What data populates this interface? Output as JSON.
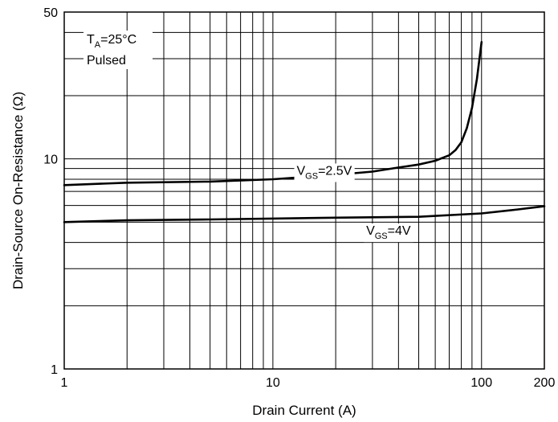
{
  "chart_data": {
    "type": "line",
    "title": "",
    "xlabel": "Drain Current (A)",
    "ylabel": "Drain-Source On-Resistance (Ω)",
    "xscale": "log",
    "yscale": "log",
    "xlim": [
      1,
      200
    ],
    "ylim": [
      1,
      50
    ],
    "grid": true,
    "x_ticks": [
      {
        "value": 1,
        "label": "1"
      },
      {
        "value": 10,
        "label": "10"
      },
      {
        "value": 100,
        "label": "100"
      },
      {
        "value": 200,
        "label": "200"
      }
    ],
    "y_ticks": [
      {
        "value": 1,
        "label": "1"
      },
      {
        "value": 10,
        "label": "10"
      },
      {
        "value": 50,
        "label": "50"
      }
    ],
    "conditions": {
      "ta_prefix": "T",
      "ta_sub": "A",
      "ta_value": "=25°C",
      "mode": "Pulsed"
    },
    "series": [
      {
        "label_prefix": "V",
        "label_sub": "GS",
        "label_value": "=2.5V",
        "label_at": {
          "x": 13,
          "y": 8.4
        },
        "points": [
          [
            1,
            7.5
          ],
          [
            2,
            7.7
          ],
          [
            5,
            7.8
          ],
          [
            10,
            8.0
          ],
          [
            20,
            8.4
          ],
          [
            30,
            8.7
          ],
          [
            40,
            9.1
          ],
          [
            50,
            9.4
          ],
          [
            60,
            9.8
          ],
          [
            70,
            10.4
          ],
          [
            75,
            11.0
          ],
          [
            80,
            12.0
          ],
          [
            85,
            14.0
          ],
          [
            90,
            17.5
          ],
          [
            95,
            24.0
          ],
          [
            100,
            36.0
          ]
        ]
      },
      {
        "label_prefix": "V",
        "label_sub": "GS",
        "label_value": "=4V",
        "label_at": {
          "x": 28,
          "y": 4.35
        },
        "points": [
          [
            1,
            5.0
          ],
          [
            2,
            5.1
          ],
          [
            5,
            5.15
          ],
          [
            10,
            5.2
          ],
          [
            20,
            5.25
          ],
          [
            50,
            5.3
          ],
          [
            100,
            5.5
          ],
          [
            150,
            5.75
          ],
          [
            200,
            5.95
          ]
        ]
      }
    ]
  }
}
